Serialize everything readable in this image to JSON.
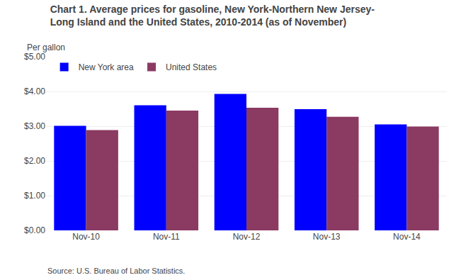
{
  "chart_data": {
    "type": "bar",
    "title": "Chart 1. Average prices for gasoline, New York-Northern New Jersey-\nLong Island and the United States, 2010-2014 (as of November)",
    "ylabel": "Per gallon",
    "annotations": [
      "Source: U.S. Bureau of Labor Statistics."
    ],
    "categories": [
      "Nov-10",
      "Nov-11",
      "Nov-12",
      "Nov-13",
      "Nov-14"
    ],
    "series": [
      {
        "name": "New York area",
        "color": "#0000FF",
        "values": [
          3.01,
          3.6,
          3.93,
          3.49,
          3.05
        ]
      },
      {
        "name": "United States",
        "color": "#8B3A62",
        "values": [
          2.89,
          3.45,
          3.53,
          3.27,
          2.99
        ]
      }
    ],
    "ylim": [
      0,
      5.0
    ],
    "yticks": [
      {
        "value": 0.0,
        "label": "$0.00"
      },
      {
        "value": 1.0,
        "label": "$1.00"
      },
      {
        "value": 2.0,
        "label": "$2.00"
      },
      {
        "value": 3.0,
        "label": "$3.00"
      },
      {
        "value": 4.0,
        "label": "$4.00"
      },
      {
        "value": 5.0,
        "label": "$5.00"
      }
    ],
    "grid": true,
    "legend": "upper left"
  }
}
